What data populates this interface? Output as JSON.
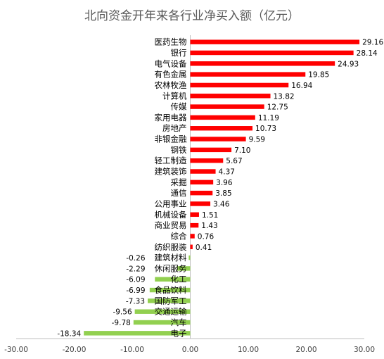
{
  "chart_data": {
    "type": "bar",
    "orientation": "horizontal",
    "title": "北向资金开年来各行业净买入额（亿元）",
    "xlabel": "",
    "ylabel": "",
    "xlim": [
      -30,
      30
    ],
    "xticks": [
      "-30.00",
      "-20.00",
      "-10.00",
      "0.00",
      "10.00",
      "20.00",
      "30.00"
    ],
    "grid": false,
    "legend": "none",
    "colors": {
      "positive": "#ff0000",
      "negative": "#92d050",
      "axis": "#bfbfbf"
    },
    "categories": [
      "医药生物",
      "银行",
      "电气设备",
      "有色金属",
      "农林牧渔",
      "计算机",
      "传媒",
      "家用电器",
      "房地产",
      "非银金融",
      "钢铁",
      "轻工制造",
      "建筑装饰",
      "采掘",
      "通信",
      "公用事业",
      "机械设备",
      "商业贸易",
      "综合",
      "纺织服装",
      "建筑材料",
      "休闲服务",
      "化工",
      "食品饮料",
      "国防军工",
      "交通运输",
      "汽车",
      "电子"
    ],
    "values": [
      29.16,
      28.14,
      24.93,
      19.85,
      16.94,
      13.82,
      12.75,
      11.19,
      10.73,
      9.59,
      7.1,
      5.67,
      4.37,
      3.96,
      3.85,
      3.46,
      1.51,
      1.43,
      0.76,
      0.41,
      -0.26,
      -2.29,
      -6.09,
      -6.99,
      -7.33,
      -9.56,
      -9.78,
      -18.34
    ],
    "value_labels": [
      "29.16",
      "28.14",
      "24.93",
      "19.85",
      "16.94",
      "13.82",
      "12.75",
      "11.19",
      "10.73",
      "9.59",
      "7.10",
      "5.67",
      "4.37",
      "3.96",
      "3.85",
      "3.46",
      "1.51",
      "1.43",
      "0.76",
      "0.41",
      "-0.26",
      "-2.29",
      "-6.09",
      "-6.99",
      "-7.33",
      "-9.56",
      "-9.78",
      "-18.34"
    ]
  }
}
